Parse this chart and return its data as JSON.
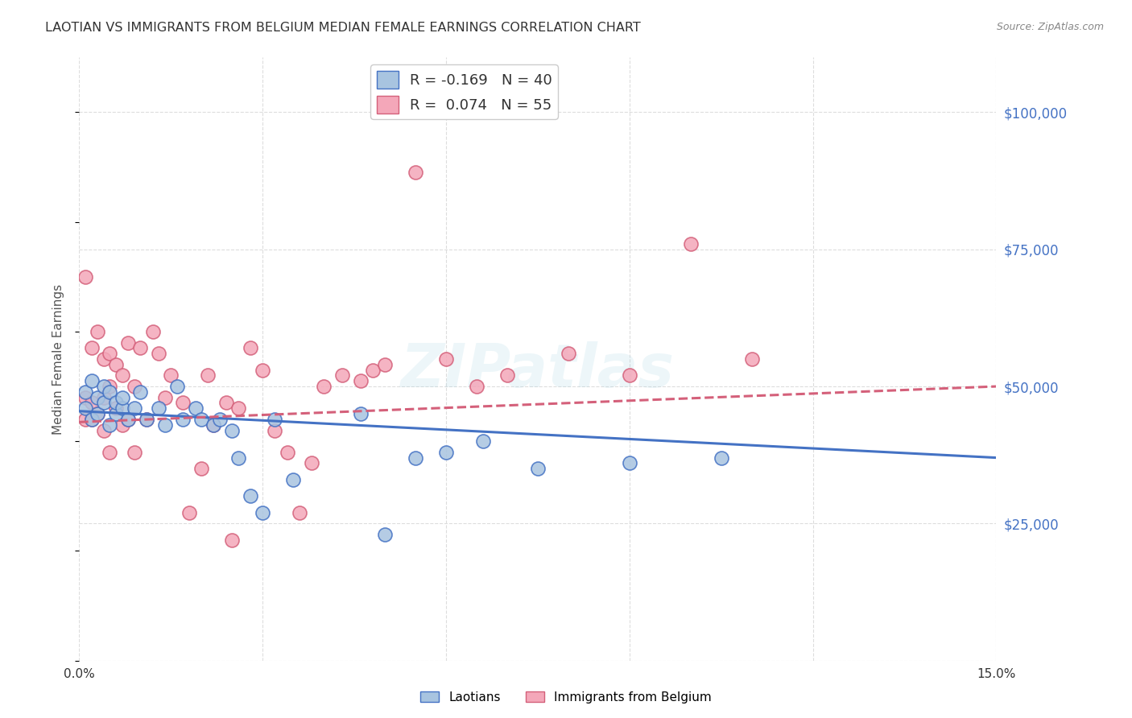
{
  "title": "LAOTIAN VS IMMIGRANTS FROM BELGIUM MEDIAN FEMALE EARNINGS CORRELATION CHART",
  "source": "Source: ZipAtlas.com",
  "ylabel": "Median Female Earnings",
  "y_ticks": [
    0,
    25000,
    50000,
    75000,
    100000
  ],
  "y_tick_labels": [
    "",
    "$25,000",
    "$50,000",
    "$75,000",
    "$100,000"
  ],
  "x_min": 0.0,
  "x_max": 0.15,
  "y_min": 0,
  "y_max": 110000,
  "laotian_R": "-0.169",
  "laotian_N": "40",
  "belgium_R": "0.074",
  "belgium_N": "55",
  "laotian_color": "#a8c4e0",
  "belgium_color": "#f4a7b9",
  "laotian_line_color": "#4472c4",
  "belgium_line_color": "#d4607a",
  "background_color": "#ffffff",
  "grid_color": "#dddddd",
  "watermark": "ZIPatlas",
  "legend_R_color": "#1a5276",
  "laotian_x": [
    0.001,
    0.001,
    0.002,
    0.002,
    0.003,
    0.003,
    0.004,
    0.004,
    0.005,
    0.005,
    0.006,
    0.006,
    0.007,
    0.007,
    0.008,
    0.009,
    0.01,
    0.011,
    0.013,
    0.014,
    0.016,
    0.017,
    0.019,
    0.02,
    0.022,
    0.023,
    0.025,
    0.026,
    0.028,
    0.03,
    0.032,
    0.035,
    0.046,
    0.05,
    0.055,
    0.06,
    0.066,
    0.075,
    0.09,
    0.105
  ],
  "laotian_y": [
    46000,
    49000,
    44000,
    51000,
    45000,
    48000,
    47000,
    50000,
    43000,
    49000,
    45000,
    47000,
    46000,
    48000,
    44000,
    46000,
    49000,
    44000,
    46000,
    43000,
    50000,
    44000,
    46000,
    44000,
    43000,
    44000,
    42000,
    37000,
    30000,
    27000,
    44000,
    33000,
    45000,
    23000,
    37000,
    38000,
    40000,
    35000,
    36000,
    37000
  ],
  "belgium_x": [
    0.001,
    0.001,
    0.001,
    0.002,
    0.002,
    0.002,
    0.003,
    0.003,
    0.004,
    0.004,
    0.004,
    0.005,
    0.005,
    0.005,
    0.006,
    0.006,
    0.007,
    0.007,
    0.008,
    0.008,
    0.009,
    0.009,
    0.01,
    0.011,
    0.012,
    0.013,
    0.014,
    0.015,
    0.017,
    0.018,
    0.02,
    0.021,
    0.022,
    0.024,
    0.025,
    0.026,
    0.028,
    0.03,
    0.032,
    0.034,
    0.036,
    0.038,
    0.04,
    0.043,
    0.046,
    0.048,
    0.05,
    0.055,
    0.06,
    0.065,
    0.07,
    0.08,
    0.09,
    0.1,
    0.11
  ],
  "belgium_y": [
    70000,
    48000,
    44000,
    57000,
    47000,
    44000,
    60000,
    45000,
    55000,
    48000,
    42000,
    56000,
    50000,
    38000,
    46000,
    54000,
    52000,
    43000,
    58000,
    44000,
    50000,
    38000,
    57000,
    44000,
    60000,
    56000,
    48000,
    52000,
    47000,
    27000,
    35000,
    52000,
    43000,
    47000,
    22000,
    46000,
    57000,
    53000,
    42000,
    38000,
    27000,
    36000,
    50000,
    52000,
    51000,
    53000,
    54000,
    89000,
    55000,
    50000,
    52000,
    56000,
    52000,
    76000,
    55000
  ]
}
